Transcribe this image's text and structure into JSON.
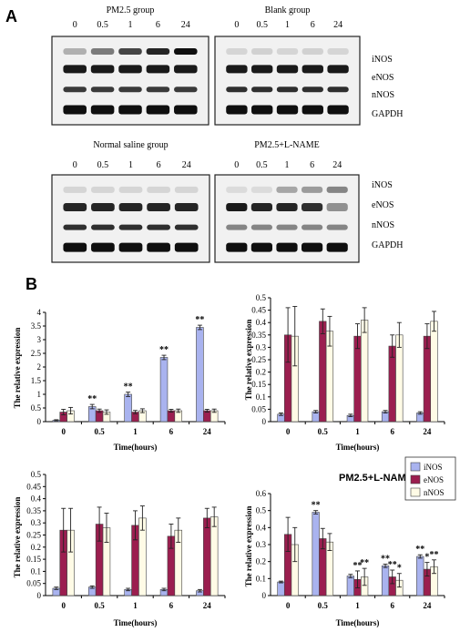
{
  "panel_a_label": "A",
  "panel_b_label": "B",
  "blots": [
    {
      "title": "PM2.5 group",
      "times": [
        "0",
        "0.5",
        "1",
        "6",
        "24"
      ]
    },
    {
      "title": "Blank group",
      "times": [
        "0",
        "0.5",
        "1",
        "6",
        "24"
      ]
    },
    {
      "title": "Normal saline group",
      "times": [
        "0",
        "0.5",
        "1",
        "6",
        "24"
      ]
    },
    {
      "title": "PM2.5+L-NAME",
      "times": [
        "0",
        "0.5",
        "1",
        "6",
        "24"
      ]
    }
  ],
  "bands": [
    "iNOS",
    "eNOS",
    "nNOS",
    "GAPDH"
  ],
  "colors": {
    "iNOS": "#a9b3ef",
    "eNOS": "#9b1e4f",
    "nNOS": "#fffbe6"
  },
  "chart_data": [
    {
      "type": "bar",
      "title": "",
      "xlabel": "Time(hours)",
      "ylabel": "The relative expression",
      "ylim": [
        0,
        4
      ],
      "yticks": [
        "0",
        "0.5",
        "1",
        "1.5",
        "2",
        "2.5",
        "3",
        "3.5",
        "4"
      ],
      "categories": [
        "0",
        "0.5",
        "1",
        "6",
        "24"
      ],
      "series": [
        {
          "values": [
            0.05,
            0.55,
            1.0,
            2.35,
            3.45
          ],
          "errors": [
            0.02,
            0.08,
            0.08,
            0.08,
            0.08
          ]
        },
        {
          "values": [
            0.35,
            0.4,
            0.35,
            0.4,
            0.4
          ],
          "errors": [
            0.1,
            0.06,
            0.06,
            0.05,
            0.05
          ]
        },
        {
          "values": [
            0.4,
            0.35,
            0.4,
            0.4,
            0.4
          ],
          "errors": [
            0.12,
            0.08,
            0.07,
            0.06,
            0.06
          ]
        }
      ],
      "annotations": [
        {
          "category": "0.5",
          "text": "**"
        },
        {
          "category": "1",
          "text": "**"
        },
        {
          "category": "6",
          "text": "**"
        },
        {
          "category": "24",
          "text": "**"
        }
      ]
    },
    {
      "type": "bar",
      "title": "",
      "xlabel": "Time(hours)",
      "ylabel": "The relative expression",
      "ylim": [
        0,
        0.5
      ],
      "yticks": [
        "0",
        "0.05",
        "0.1",
        "0.15",
        "0.2",
        "0.25",
        "0.3",
        "0.35",
        "0.4",
        "0.45",
        "0.5"
      ],
      "categories": [
        "0",
        "0.5",
        "1",
        "6",
        "24"
      ],
      "series": [
        {
          "values": [
            0.03,
            0.04,
            0.025,
            0.04,
            0.035
          ],
          "errors": [
            0.005,
            0.005,
            0.005,
            0.005,
            0.005
          ]
        },
        {
          "values": [
            0.35,
            0.405,
            0.345,
            0.305,
            0.345
          ],
          "errors": [
            0.11,
            0.05,
            0.05,
            0.045,
            0.05
          ]
        },
        {
          "values": [
            0.345,
            0.365,
            0.41,
            0.35,
            0.405
          ],
          "errors": [
            0.12,
            0.06,
            0.05,
            0.05,
            0.04
          ]
        }
      ],
      "annotations": []
    },
    {
      "type": "bar",
      "title": "",
      "xlabel": "Time(hours)",
      "ylabel": "The relative expression",
      "ylim": [
        0,
        0.5
      ],
      "yticks": [
        "0",
        "0.05",
        "0.1",
        "0.15",
        "0.2",
        "0.25",
        "0.3",
        "0.35",
        "0.4",
        "0.45",
        "0.5"
      ],
      "categories": [
        "0",
        "0.5",
        "1",
        "6",
        "24"
      ],
      "series": [
        {
          "values": [
            0.03,
            0.035,
            0.025,
            0.025,
            0.02
          ],
          "errors": [
            0.005,
            0.005,
            0.005,
            0.005,
            0.005
          ]
        },
        {
          "values": [
            0.27,
            0.295,
            0.29,
            0.245,
            0.32
          ],
          "errors": [
            0.09,
            0.07,
            0.06,
            0.05,
            0.04
          ]
        },
        {
          "values": [
            0.27,
            0.28,
            0.32,
            0.27,
            0.325
          ],
          "errors": [
            0.09,
            0.06,
            0.05,
            0.05,
            0.04
          ]
        }
      ],
      "annotations": []
    },
    {
      "type": "bar",
      "title": "PM2.5+L-NAME",
      "xlabel": "Time(hours)",
      "ylabel": "The relative expression",
      "ylim": [
        0,
        0.6
      ],
      "yticks": [
        "0",
        "0.1",
        "0.2",
        "0.3",
        "0.4",
        "0.5",
        "0.6"
      ],
      "categories": [
        "0",
        "0.5",
        "1",
        "6",
        "24"
      ],
      "series": [
        {
          "name": "iNOS",
          "values": [
            0.08,
            0.49,
            0.115,
            0.175,
            0.23
          ],
          "errors": [
            0.005,
            0.01,
            0.01,
            0.01,
            0.01
          ]
        },
        {
          "name": "eNOS",
          "values": [
            0.36,
            0.335,
            0.095,
            0.11,
            0.155
          ],
          "errors": [
            0.1,
            0.06,
            0.05,
            0.04,
            0.04
          ]
        },
        {
          "name": "nNOS",
          "values": [
            0.3,
            0.315,
            0.11,
            0.09,
            0.17
          ],
          "errors": [
            0.1,
            0.05,
            0.05,
            0.04,
            0.04
          ]
        }
      ],
      "legend": "top-right",
      "annotations": [
        {
          "category": "0.5",
          "series": 0,
          "text": "**"
        },
        {
          "category": "1",
          "series": 1,
          "text": "**"
        },
        {
          "category": "1",
          "series": 2,
          "text": "**"
        },
        {
          "category": "6",
          "series": 0,
          "text": "**"
        },
        {
          "category": "6",
          "series": 1,
          "text": "**"
        },
        {
          "category": "6",
          "series": 2,
          "text": "*"
        },
        {
          "category": "24",
          "series": 0,
          "text": "**"
        },
        {
          "category": "24",
          "series": 1,
          "text": "*"
        },
        {
          "category": "24",
          "series": 2,
          "text": "**"
        }
      ]
    }
  ]
}
